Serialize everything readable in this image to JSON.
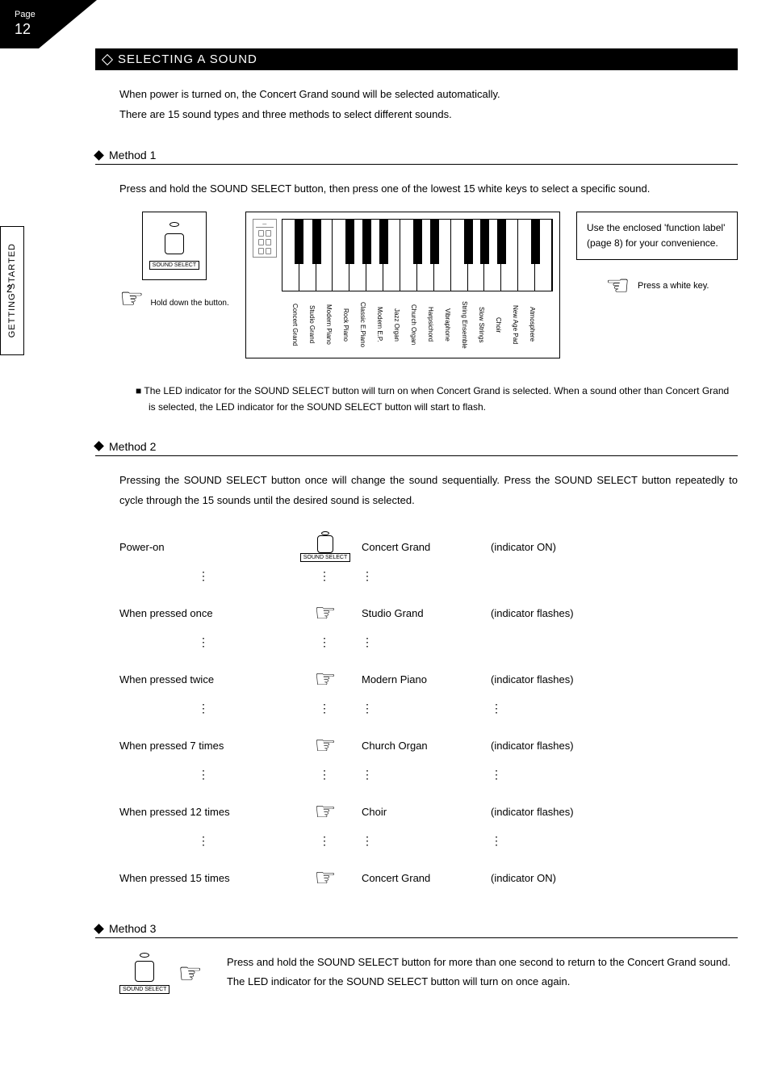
{
  "page": {
    "label": "Page",
    "number": "12"
  },
  "sidebar": {
    "chapter_num": "2",
    "chapter_title": "GETTING STARTED"
  },
  "section": {
    "title": "SELECTING A SOUND"
  },
  "intro": {
    "line1": "When power is turned on, the Concert Grand sound will be selected automatically.",
    "line2": "There are 15 sound types and three methods to select different sounds."
  },
  "method1": {
    "heading": "Method 1",
    "text": "Press and hold the SOUND SELECT button, then press one of the lowest 15 white keys to select a specific sound.",
    "button_label": "SOUND SELECT",
    "hold_caption": "Hold down the button.",
    "note_box": "Use the enclosed 'function label' (page 8) for your convenience.",
    "press_key": "Press a white key.",
    "sounds": [
      "Concert Grand",
      "Studio Grand",
      "Modern Piano",
      "Rock Piano",
      "Classic E.Piano",
      "Modern E.P.",
      "Jazz Organ",
      "Church Organ",
      "Harpsichord",
      "Vibraphone",
      "String Ensemble",
      "Slow Strings",
      "Choir",
      "New Age Pad",
      "Atmosphere"
    ]
  },
  "led_note": "The LED indicator for the SOUND SELECT button will turn on when Concert Grand is selected. When a sound other than Concert Grand is selected, the LED indicator for the SOUND SELECT button will start to flash.",
  "method2": {
    "heading": "Method 2",
    "text": "Pressing the SOUND SELECT button once will change the sound sequentially. Press the SOUND SELECT button repeatedly to cycle through the 15 sounds until the desired sound is selected.",
    "button_label": "SOUND SELECT",
    "rows": [
      {
        "action": "Power-on",
        "sound": "Concert Grand",
        "indicator": "(indicator ON)",
        "icon": "button"
      },
      {
        "action": "When pressed once",
        "sound": "Studio Grand",
        "indicator": "(indicator flashes)",
        "icon": "hand"
      },
      {
        "action": "When pressed twice",
        "sound": "Modern Piano",
        "indicator": "(indicator flashes)",
        "icon": "hand"
      },
      {
        "action": "When pressed 7 times",
        "sound": "Church Organ",
        "indicator": "(indicator flashes)",
        "icon": "hand"
      },
      {
        "action": "When pressed 12 times",
        "sound": "Choir",
        "indicator": "(indicator flashes)",
        "icon": "hand"
      },
      {
        "action": "When pressed 15 times",
        "sound": "Concert Grand",
        "indicator": "(indicator ON)",
        "icon": "hand"
      }
    ]
  },
  "method3": {
    "heading": "Method 3",
    "button_label": "SOUND SELECT",
    "line1": "Press and hold the SOUND SELECT button for more than one second to return to the Concert Grand sound.",
    "line2": "The LED indicator for the SOUND SELECT button will turn on once again."
  },
  "glyphs": {
    "hand": "☞",
    "vdots": "⋮"
  },
  "keyboard": {
    "white_keys": 16,
    "black_positions_pct": [
      4.5,
      11,
      23.5,
      29.8,
      36,
      48.5,
      54.8,
      67.3,
      73.5,
      79.8,
      92.3
    ]
  }
}
